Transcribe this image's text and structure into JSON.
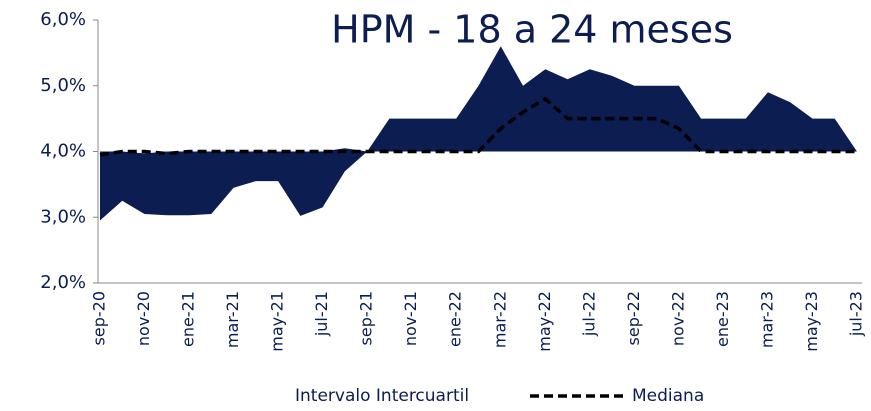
{
  "chart_data": {
    "type": "band-line",
    "title": "HPM - 18 a 24 meses",
    "categories": [
      "sep-20",
      null,
      "nov-20",
      null,
      "ene-21",
      null,
      "mar-21",
      null,
      "may-21",
      null,
      "jul-21",
      null,
      "sep-21",
      null,
      "nov-21",
      null,
      "ene-22",
      null,
      "mar-22",
      null,
      "may-22",
      null,
      "jul-22",
      null,
      "sep-22",
      null,
      "nov-22",
      null,
      "ene-23",
      null,
      "mar-23",
      null,
      "may-23",
      null,
      "jul-23"
    ],
    "series": [
      {
        "name": "Intervalo Intercuartil",
        "color": "#0b1d51",
        "lower": [
          2.95,
          3.25,
          3.05,
          3.03,
          3.03,
          3.05,
          3.45,
          3.55,
          3.55,
          3.02,
          3.15,
          3.7,
          4.0,
          4.0,
          4.0,
          4.0,
          4.0,
          4.0,
          4.0,
          4.0,
          4.0,
          4.0,
          4.0,
          4.0,
          4.0,
          4.0,
          4.0,
          4.0,
          4.0,
          4.0,
          4.0,
          4.0,
          4.0,
          4.0,
          4.0
        ],
        "upper": [
          4.0,
          4.0,
          3.97,
          4.0,
          4.0,
          4.0,
          4.0,
          4.0,
          4.0,
          4.0,
          4.0,
          4.05,
          4.0,
          4.5,
          4.5,
          4.5,
          4.5,
          5.0,
          5.6,
          5.0,
          5.25,
          5.1,
          5.25,
          5.15,
          5.0,
          5.0,
          5.0,
          4.5,
          4.5,
          4.5,
          4.9,
          4.75,
          4.5,
          4.5,
          4.0
        ]
      },
      {
        "name": "Mediana",
        "color": "#000000",
        "values": [
          3.95,
          4.0,
          4.0,
          3.97,
          4.0,
          4.0,
          4.0,
          4.0,
          4.0,
          4.0,
          4.0,
          4.0,
          4.0,
          4.0,
          4.0,
          4.0,
          4.0,
          4.0,
          4.35,
          4.6,
          4.8,
          4.5,
          4.5,
          4.5,
          4.5,
          4.5,
          4.35,
          4.0,
          4.0,
          4.0,
          4.0,
          4.0,
          4.0,
          4.0,
          4.0
        ]
      }
    ],
    "ylim": [
      2,
      6
    ],
    "yticks": [
      {
        "value": 2,
        "label": "2,0%"
      },
      {
        "value": 3,
        "label": "3,0%"
      },
      {
        "value": 4,
        "label": "4,0%"
      },
      {
        "value": 5,
        "label": "5,0%"
      },
      {
        "value": 6,
        "label": "6,0%"
      }
    ]
  }
}
